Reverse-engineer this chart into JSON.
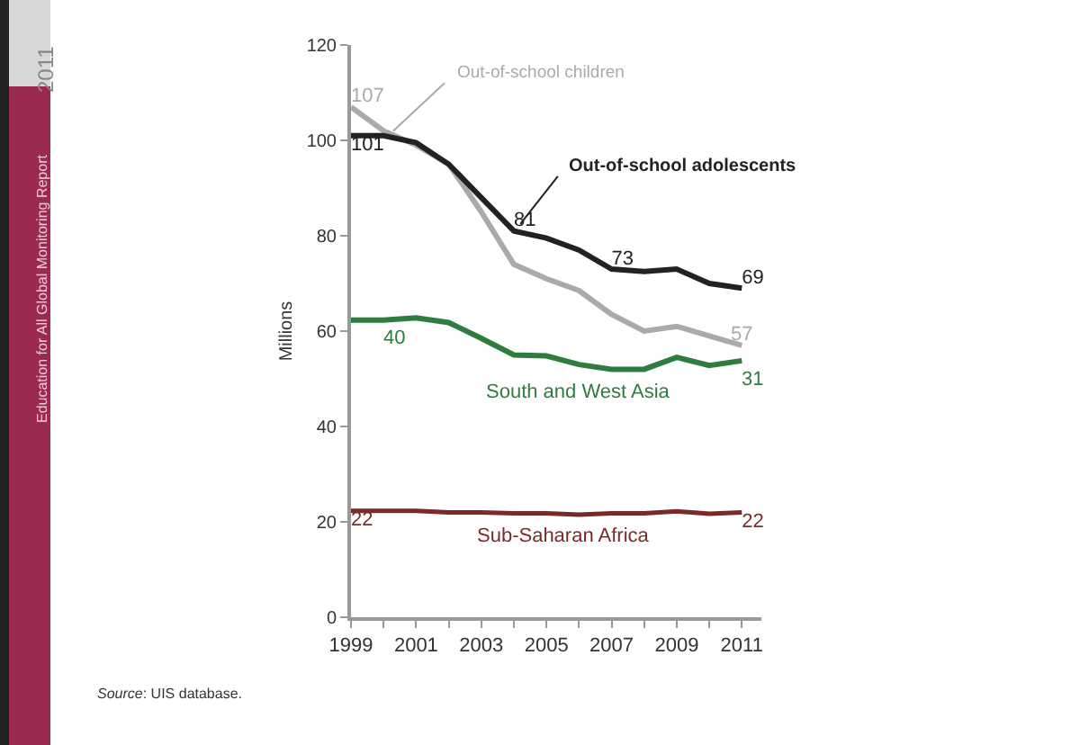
{
  "chart_data": {
    "type": "line",
    "ylabel": "Millions",
    "x": [
      1999,
      2000,
      2001,
      2002,
      2003,
      2004,
      2005,
      2006,
      2007,
      2008,
      2009,
      2010,
      2011
    ],
    "series": [
      {
        "name": "Out-of-school children",
        "color": "#aaaaaa",
        "values": [
          107,
          102,
          99,
          95,
          85,
          74,
          71,
          68.5,
          63.5,
          60,
          61,
          59,
          57
        ],
        "value_labels": [
          "107",
          null,
          null,
          null,
          null,
          null,
          null,
          null,
          null,
          null,
          null,
          null,
          "57"
        ]
      },
      {
        "name": "Out-of-school adolescents",
        "color": "#222222",
        "values": [
          101,
          101,
          99.5,
          95,
          88,
          81,
          79.5,
          77,
          73,
          72.5,
          73,
          70,
          69
        ],
        "value_labels": [
          "101",
          null,
          null,
          null,
          null,
          "81",
          null,
          null,
          "73",
          null,
          null,
          null,
          "69"
        ]
      },
      {
        "name": "South and West Asia",
        "color": "#2e7d3e",
        "values": [
          62.3,
          62.3,
          62.8,
          61.8,
          58.5,
          55,
          54.8,
          53,
          52,
          52,
          54.5,
          52.8,
          53.8
        ]
      },
      {
        "name": "Sub-Saharan Africa",
        "color": "#7b2a2a",
        "values": [
          22.3,
          22.3,
          22.3,
          22,
          22,
          21.8,
          21.8,
          21.5,
          21.8,
          21.8,
          22.2,
          21.7,
          22
        ],
        "value_labels": [
          "22",
          null,
          null,
          null,
          null,
          null,
          null,
          null,
          null,
          null,
          null,
          null,
          "22"
        ]
      }
    ],
    "xlim": [
      1999,
      2011.6
    ],
    "xticks": [
      1999,
      {
        "value": 2000,
        "label": null
      },
      2001,
      {
        "value": 2002,
        "label": null
      },
      2003,
      {
        "value": 2004,
        "label": null
      },
      2005,
      {
        "value": 2006,
        "label": null
      },
      2007,
      {
        "value": 2008,
        "label": null
      },
      2009,
      {
        "value": 2010,
        "label": null
      },
      2011
    ],
    "ylim": [
      0,
      120
    ],
    "yticks": [
      0,
      20,
      40,
      60,
      80,
      100,
      120
    ],
    "legend": false,
    "marker": "none",
    "line_style": "solid",
    "annotations": [
      "40",
      "31",
      "Source: UIS database.",
      "Education for All Global Monitoring Report",
      "2011"
    ]
  }
}
